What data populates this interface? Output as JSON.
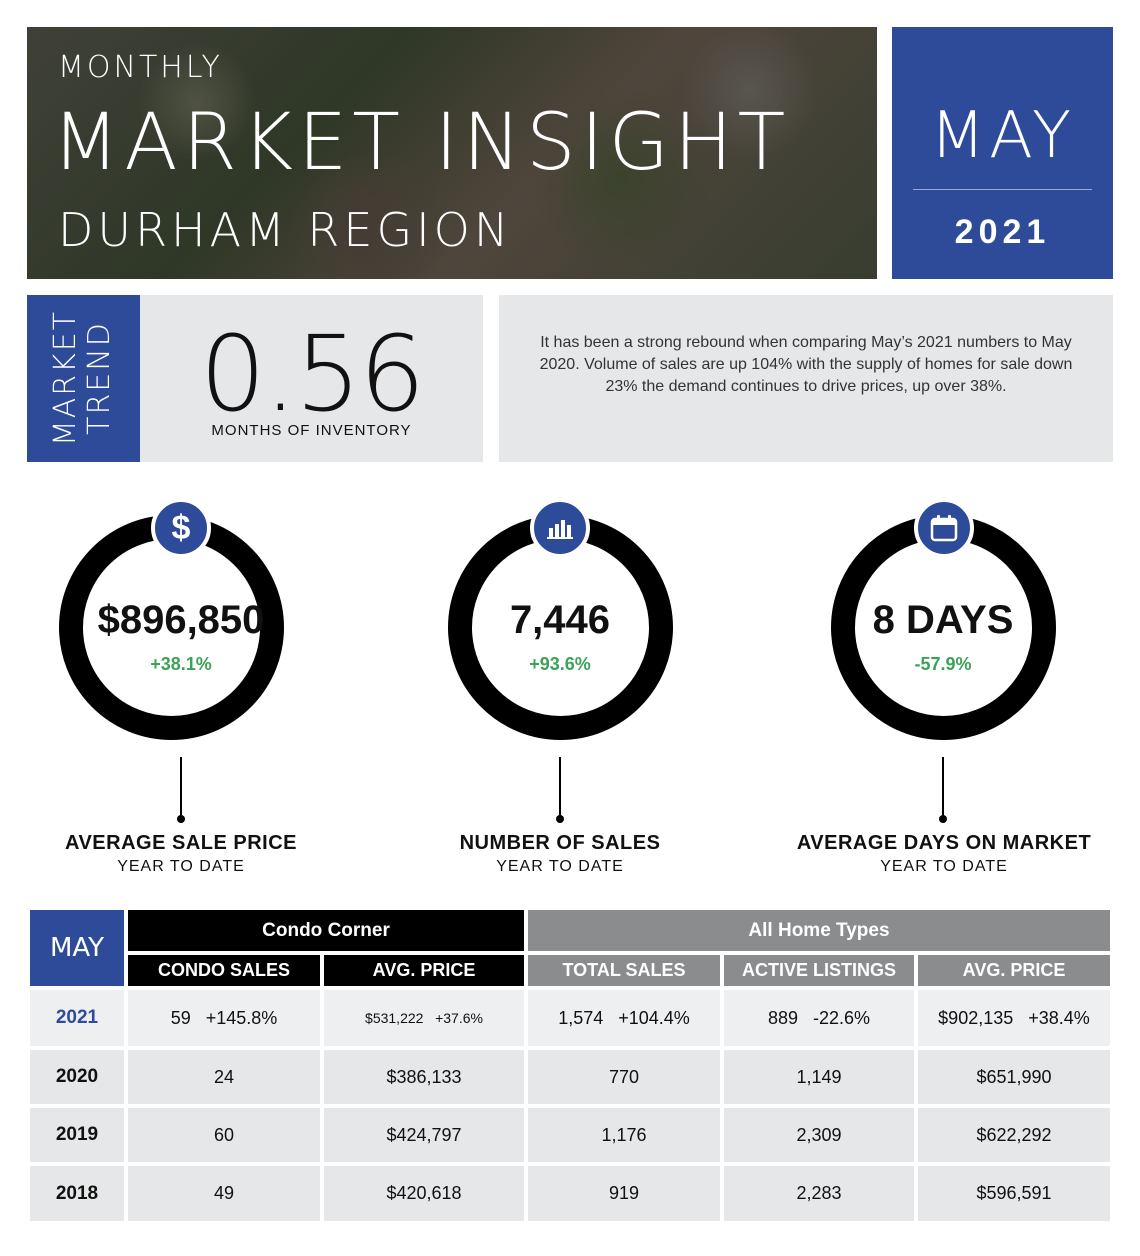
{
  "header": {
    "eyebrow": "MONTHLY",
    "title": "MARKET INSIGHT",
    "region": "DURHAM REGION",
    "month": "MAY",
    "year": "2021"
  },
  "trend": {
    "tag_line1": "MARKET",
    "tag_line2": "TREND",
    "value": "0.56",
    "label": "MONTHS OF INVENTORY",
    "summary": "It has been a strong rebound when comparing May’s 2021 numbers to May 2020.  Volume of sales are up 104% with the supply of homes for sale down 23% the demand continues to drive prices, up over 38%."
  },
  "stats": [
    {
      "icon": "dollar-icon",
      "value": "$896,850",
      "change": "+38.1%",
      "label": "AVERAGE SALE PRICE",
      "sub": "YEAR TO DATE"
    },
    {
      "icon": "bar-chart-icon",
      "value": "7,446",
      "change": "+93.6%",
      "label": "NUMBER OF SALES",
      "sub": "YEAR TO DATE"
    },
    {
      "icon": "calendar-icon",
      "value": "8 DAYS",
      "change": "-57.9%",
      "label": "AVERAGE DAYS ON MARKET",
      "sub": "YEAR TO DATE"
    }
  ],
  "colors": {
    "brand_blue": "#2e4b9a",
    "positive_green": "#3aa357",
    "header_gray": "#8a8c8e"
  },
  "table": {
    "corner": "MAY",
    "group_condo": "Condo Corner",
    "group_all": "All Home Types",
    "columns": [
      "CONDO SALES",
      "AVG. PRICE",
      "TOTAL SALES",
      "ACTIVE LISTINGS",
      "AVG. PRICE"
    ],
    "rows": [
      {
        "year": "2021",
        "cells": [
          "59   +145.8%",
          "$531,222   +37.6%",
          "1,574   +104.4%",
          "889   -22.6%",
          "$902,135   +38.4%"
        ]
      },
      {
        "year": "2020",
        "cells": [
          "24",
          "$386,133",
          "770",
          "1,149",
          "$651,990"
        ]
      },
      {
        "year": "2019",
        "cells": [
          "60",
          "$424,797",
          "1,176",
          "2,309",
          "$622,292"
        ]
      },
      {
        "year": "2018",
        "cells": [
          "49",
          "$420,618",
          "919",
          "2,283",
          "$596,591"
        ]
      }
    ]
  }
}
